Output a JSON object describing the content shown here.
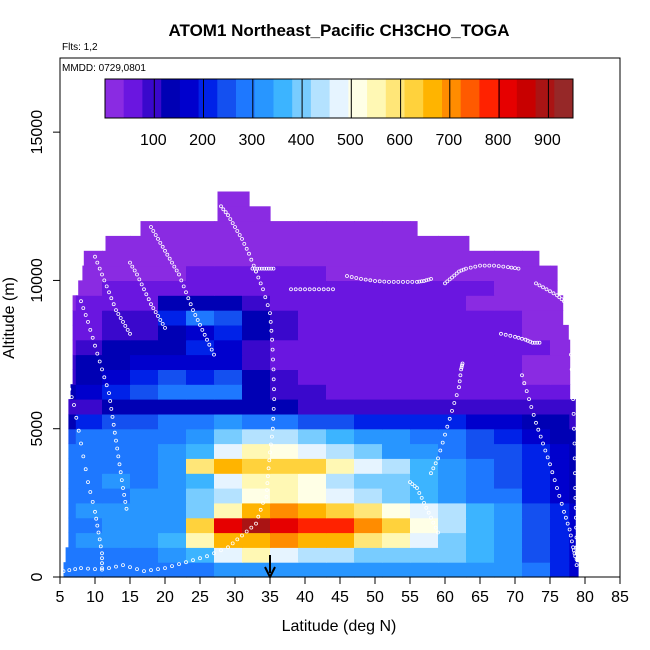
{
  "chart_data": {
    "type": "heatmap",
    "title": "ATOM1 Northeast_Pacific CH3CHO_TOGA",
    "subtitle": "Flts: 1,2",
    "annotation": "MMDD: 0729,0801",
    "xlabel": "Latitude (deg N)",
    "ylabel": "Altitude (m)",
    "xlim": [
      5,
      85
    ],
    "ylim": [
      0,
      17500
    ],
    "xticks": [
      "5",
      "10",
      "15",
      "20",
      "25",
      "30",
      "35",
      "40",
      "45",
      "50",
      "55",
      "60",
      "65",
      "70",
      "75",
      "80",
      "85"
    ],
    "yticks": [
      "0",
      "5000",
      "10000",
      "15000"
    ],
    "colorbar": {
      "range": [
        0,
        950
      ],
      "ticks": [
        "100",
        "200",
        "300",
        "400",
        "500",
        "600",
        "700",
        "800",
        "900"
      ],
      "colors": [
        "#8a2be2",
        "#6a16e0",
        "#3a08cc",
        "#0000b4",
        "#0000cd",
        "#0022e8",
        "#1450f0",
        "#1e78ff",
        "#2896ff",
        "#3cb4ff",
        "#78ccff",
        "#b4e2ff",
        "#e6f4ff",
        "#ffffe6",
        "#fff8b4",
        "#ffe678",
        "#ffd23c",
        "#ffb400",
        "#ff8c00",
        "#ff5a00",
        "#ff2200",
        "#e60000",
        "#c80000",
        "#aa1414",
        "#962828"
      ]
    },
    "marker": {
      "x": 35,
      "label": "arrow"
    },
    "altitude_levels": [
      250,
      750,
      1250,
      1750,
      2250,
      2750,
      3250,
      3750,
      4250,
      4750,
      5250,
      5750,
      6250,
      6750,
      7250,
      7750,
      8250,
      8750,
      9250,
      9750,
      10250,
      10750,
      11250,
      11750,
      12250,
      12750
    ],
    "lat_bins": [
      5.5,
      9,
      13,
      17,
      21,
      25,
      29,
      33,
      37,
      41,
      45,
      49,
      53,
      57,
      61,
      65,
      69,
      73,
      77,
      78.5
    ],
    "values_by_level": [
      [
        280,
        290,
        300,
        300,
        290,
        300,
        320,
        320,
        320,
        320,
        320,
        320,
        320,
        320,
        320,
        330,
        330,
        290,
        190,
        170
      ],
      [
        300,
        300,
        300,
        300,
        320,
        350,
        470,
        560,
        480,
        440,
        420,
        410,
        400,
        400,
        380,
        360,
        330,
        250,
        200,
        170
      ],
      [
        300,
        320,
        320,
        310,
        360,
        560,
        660,
        680,
        700,
        680,
        660,
        600,
        550,
        470,
        400,
        360,
        320,
        250,
        190,
        160
      ],
      [
        290,
        300,
        310,
        330,
        340,
        620,
        810,
        880,
        820,
        780,
        760,
        720,
        640,
        520,
        420,
        370,
        320,
        240,
        190,
        160
      ],
      [
        300,
        330,
        340,
        340,
        340,
        400,
        540,
        660,
        690,
        670,
        640,
        590,
        520,
        460,
        420,
        360,
        310,
        240,
        190,
        160
      ],
      [
        290,
        300,
        300,
        320,
        330,
        380,
        450,
        520,
        540,
        520,
        470,
        430,
        400,
        370,
        340,
        300,
        270,
        220,
        180,
        150
      ],
      [
        290,
        300,
        310,
        300,
        330,
        360,
        480,
        560,
        540,
        500,
        450,
        410,
        380,
        350,
        320,
        290,
        260,
        210,
        180,
        150
      ],
      [
        280,
        290,
        290,
        300,
        340,
        590,
        660,
        630,
        630,
        610,
        560,
        490,
        420,
        360,
        320,
        280,
        250,
        200,
        170,
        150
      ],
      [
        270,
        280,
        290,
        300,
        320,
        370,
        480,
        560,
        530,
        490,
        430,
        380,
        340,
        320,
        300,
        260,
        230,
        190,
        170,
        140
      ],
      [
        260,
        270,
        280,
        290,
        300,
        330,
        400,
        430,
        420,
        400,
        360,
        330,
        310,
        290,
        280,
        240,
        210,
        180,
        150,
        130
      ],
      [
        150,
        200,
        230,
        260,
        280,
        300,
        310,
        300,
        270,
        250,
        230,
        220,
        210,
        200,
        200,
        180,
        160,
        140,
        120,
        100
      ],
      [
        100,
        110,
        120,
        120,
        120,
        120,
        130,
        130,
        120,
        110,
        110,
        110,
        110,
        110,
        110,
        110,
        110,
        100,
        90,
        80
      ],
      [
        130,
        180,
        220,
        250,
        270,
        280,
        300,
        150,
        100,
        80,
        70,
        70,
        60,
        60,
        60,
        60,
        60,
        50,
        40,
        40
      ],
      [
        100,
        150,
        180,
        210,
        230,
        200,
        240,
        120,
        80,
        60,
        50,
        50,
        50,
        50,
        40,
        40,
        40,
        30,
        30,
        30
      ],
      [
        80,
        120,
        150,
        160,
        180,
        170,
        170,
        100,
        70,
        60,
        50,
        40,
        40,
        40,
        40,
        40,
        40,
        30,
        30,
        30
      ],
      [
        60,
        90,
        120,
        130,
        150,
        200,
        170,
        100,
        70,
        60,
        50,
        40,
        40,
        40,
        40,
        50,
        50,
        40,
        30,
        30
      ],
      [
        50,
        70,
        90,
        110,
        130,
        170,
        200,
        120,
        80,
        60,
        50,
        50,
        50,
        50,
        40,
        40,
        40,
        30,
        20,
        20
      ],
      [
        40,
        60,
        80,
        90,
        200,
        280,
        250,
        140,
        90,
        70,
        60,
        60,
        60,
        50,
        50,
        50,
        40,
        30,
        20,
        20
      ],
      [
        30,
        40,
        60,
        70,
        120,
        130,
        120,
        80,
        60,
        50,
        40,
        40,
        40,
        40,
        40,
        30,
        30,
        20,
        20,
        20
      ],
      [
        20,
        30,
        40,
        40,
        40,
        50,
        60,
        60,
        60,
        50,
        50,
        40,
        40,
        40,
        40,
        40,
        30,
        20,
        10,
        10
      ],
      [
        10,
        20,
        30,
        30,
        30,
        40,
        40,
        40,
        40,
        40,
        30,
        30,
        30,
        30,
        30,
        30,
        20,
        20,
        10,
        10
      ],
      [
        10,
        10,
        10,
        10,
        10,
        20,
        20,
        20,
        10,
        10,
        10,
        10,
        10,
        10,
        10,
        10,
        10,
        10,
        10,
        10
      ],
      [
        10,
        10,
        10,
        10,
        10,
        10,
        10,
        10,
        10,
        10,
        10,
        10,
        10,
        10,
        10,
        10,
        10,
        10,
        10,
        10
      ],
      [
        10,
        10,
        10,
        10,
        10,
        10,
        10,
        10,
        10,
        10,
        10,
        10,
        10,
        10,
        10,
        10,
        10,
        10,
        10,
        10
      ],
      [
        10,
        10,
        10,
        10,
        10,
        10,
        10,
        10,
        10,
        10,
        10,
        10,
        10,
        10,
        10,
        10,
        10,
        10,
        10,
        10
      ],
      [
        10,
        10,
        10,
        10,
        10,
        10,
        10,
        10,
        10,
        10,
        10,
        10,
        10,
        10,
        10,
        10,
        10,
        10,
        10,
        10
      ]
    ],
    "coverage_by_level": [
      [
        5.2,
        79
      ],
      [
        5.8,
        78.6
      ],
      [
        6.2,
        78.6
      ],
      [
        6.2,
        78.6
      ],
      [
        6.2,
        78.6
      ],
      [
        6.2,
        78.6
      ],
      [
        6.2,
        78.6
      ],
      [
        6.2,
        78.6
      ],
      [
        6.2,
        78.6
      ],
      [
        6.2,
        78.6
      ],
      [
        6.2,
        78.6
      ],
      [
        6.2,
        78.6
      ],
      [
        6.5,
        77.8
      ],
      [
        6.8,
        77.8
      ],
      [
        6.8,
        77.8
      ],
      [
        6.8,
        77.8
      ],
      [
        6.8,
        77.6
      ],
      [
        6.8,
        76.8
      ],
      [
        6.8,
        76.8
      ],
      [
        7.6,
        76
      ],
      [
        8.2,
        76
      ],
      [
        8.4,
        73.4
      ],
      [
        11.5,
        63.4
      ],
      [
        16.5,
        56
      ],
      [
        27.5,
        35
      ],
      [
        27.5,
        32
      ]
    ],
    "flight_tracks": [
      [
        [
          5.5,
          200
        ],
        [
          8,
          300
        ],
        [
          11,
          250
        ],
        [
          14,
          400
        ],
        [
          17,
          200
        ],
        [
          20,
          300
        ],
        [
          23,
          500
        ],
        [
          26,
          700
        ],
        [
          29,
          1000
        ],
        [
          31,
          1400
        ],
        [
          33,
          1800
        ],
        [
          34,
          2500
        ]
      ],
      [
        [
          6,
          6600
        ],
        [
          7,
          5800
        ],
        [
          8,
          4500
        ],
        [
          9,
          3200
        ],
        [
          10,
          2200
        ],
        [
          10.5,
          1500
        ],
        [
          11,
          800
        ],
        [
          11,
          300
        ]
      ],
      [
        [
          8,
          9300
        ],
        [
          9,
          8600
        ],
        [
          10,
          7800
        ],
        [
          11,
          7000
        ],
        [
          12,
          6200
        ],
        [
          12.5,
          5400
        ],
        [
          13,
          4600
        ],
        [
          13.5,
          3800
        ],
        [
          14,
          3000
        ],
        [
          14.5,
          2300
        ]
      ],
      [
        [
          10,
          10800
        ],
        [
          11,
          10200
        ],
        [
          12,
          9600
        ],
        [
          13,
          9000
        ],
        [
          14,
          8600
        ],
        [
          15,
          8200
        ]
      ],
      [
        [
          15,
          10600
        ],
        [
          16,
          10200
        ],
        [
          17,
          9700
        ],
        [
          18,
          9200
        ],
        [
          19,
          8800
        ],
        [
          20,
          8400
        ]
      ],
      [
        [
          18,
          11800
        ],
        [
          19,
          11400
        ],
        [
          20,
          11000
        ],
        [
          21,
          10600
        ],
        [
          22,
          10200
        ],
        [
          23,
          9600
        ],
        [
          24,
          9000
        ],
        [
          25,
          8500
        ],
        [
          26,
          8000
        ],
        [
          27,
          7500
        ]
      ],
      [
        [
          28,
          12500
        ],
        [
          29,
          12200
        ],
        [
          30,
          11800
        ],
        [
          31,
          11400
        ],
        [
          32,
          10900
        ],
        [
          33,
          10300
        ]
      ],
      [
        [
          33,
          10300
        ],
        [
          34,
          9700
        ],
        [
          35,
          8900
        ],
        [
          35.3,
          8000
        ],
        [
          35.5,
          7000
        ],
        [
          35.6,
          6000
        ],
        [
          35.4,
          5000
        ],
        [
          35,
          4200
        ],
        [
          34.7,
          3400
        ],
        [
          34.5,
          2700
        ]
      ],
      [
        [
          32.5,
          10400
        ],
        [
          33.5,
          10400
        ],
        [
          34.5,
          10400
        ],
        [
          35.5,
          10400
        ]
      ],
      [
        [
          38,
          9700
        ],
        [
          40,
          9700
        ],
        [
          42,
          9700
        ],
        [
          44,
          9700
        ]
      ],
      [
        [
          46,
          10150
        ],
        [
          48,
          10050
        ],
        [
          50,
          9980
        ],
        [
          52,
          9950
        ],
        [
          54,
          9950
        ],
        [
          56,
          9950
        ],
        [
          57,
          9980
        ],
        [
          58,
          10050
        ]
      ],
      [
        [
          55,
          3200
        ],
        [
          56,
          3000
        ],
        [
          57,
          2500
        ],
        [
          58,
          2000
        ],
        [
          59,
          1500
        ]
      ],
      [
        [
          58,
          3500
        ],
        [
          59,
          4000
        ],
        [
          60,
          4800
        ],
        [
          61,
          5600
        ],
        [
          62,
          6400
        ],
        [
          62.3,
          7000
        ],
        [
          62.5,
          7200
        ]
      ],
      [
        [
          60,
          9900
        ],
        [
          61,
          10100
        ],
        [
          62,
          10300
        ],
        [
          63,
          10400
        ],
        [
          65,
          10500
        ],
        [
          67,
          10500
        ],
        [
          69,
          10450
        ],
        [
          70.5,
          10400
        ]
      ],
      [
        [
          68,
          8200
        ],
        [
          70,
          8100
        ],
        [
          71.5,
          8000
        ],
        [
          72.5,
          7900
        ],
        [
          73.5,
          7900
        ]
      ],
      [
        [
          73,
          9900
        ],
        [
          74.5,
          9700
        ],
        [
          76,
          9500
        ],
        [
          77,
          9300
        ]
      ],
      [
        [
          71,
          6800
        ],
        [
          72,
          6000
        ],
        [
          73,
          5200
        ],
        [
          74,
          4500
        ],
        [
          75,
          3800
        ],
        [
          76,
          3000
        ],
        [
          77,
          2200
        ],
        [
          77.8,
          1600
        ],
        [
          78.3,
          1000
        ],
        [
          78.6,
          700
        ]
      ],
      [
        [
          78,
          7500
        ],
        [
          78.3,
          6000
        ],
        [
          78.5,
          4500
        ],
        [
          78.6,
          3000
        ],
        [
          78.7,
          2000
        ],
        [
          78.8,
          1000
        ],
        [
          78.8,
          400
        ]
      ]
    ]
  }
}
